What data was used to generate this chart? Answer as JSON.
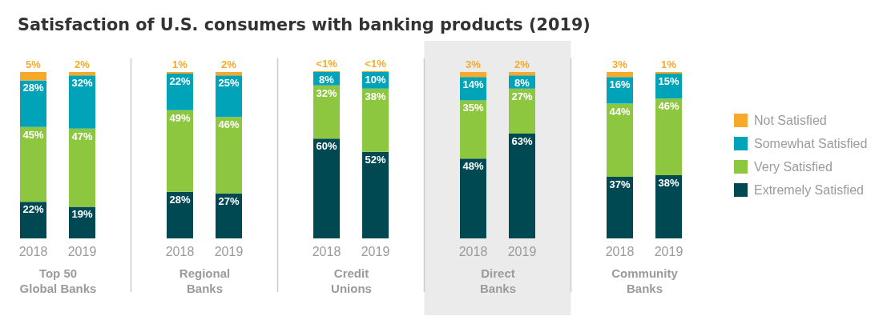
{
  "chart_data": [
    {
      "type": "bar",
      "title": "Satisfaction of U.S. consumers with banking products (2019)",
      "xlabel": "Top 50\nGlobal Banks",
      "categories": [
        "2018",
        "2019"
      ],
      "stacked": true,
      "tick_labels": "x",
      "legend": "right",
      "series": [
        {
          "name": "Extremely Satisfied",
          "color": "#004852",
          "values": [
            22,
            19
          ],
          "value_labels": [
            "22%",
            "19%"
          ]
        },
        {
          "name": "Very Satisfied",
          "color": "#8dc63f",
          "values": [
            45,
            47
          ],
          "value_labels": [
            "45%",
            "47%"
          ]
        },
        {
          "name": "Somewhat Satisfied",
          "color": "#00a3b8",
          "values": [
            28,
            32
          ],
          "value_labels": [
            "28%",
            "32%"
          ]
        },
        {
          "name": "Not Satisfied",
          "color": "#f5ab29",
          "values": [
            5,
            2
          ],
          "value_labels": [
            "5%",
            "2%"
          ]
        }
      ]
    },
    {
      "type": "bar",
      "xlabel": "Regional\nBanks",
      "categories": [
        "2018",
        "2019"
      ],
      "stacked": true,
      "tick_labels": "x",
      "series": [
        {
          "color": "#004852",
          "values": [
            28,
            27
          ],
          "value_labels": [
            "28%",
            "27%"
          ]
        },
        {
          "color": "#8dc63f",
          "values": [
            49,
            46
          ],
          "value_labels": [
            "49%",
            "46%"
          ]
        },
        {
          "color": "#00a3b8",
          "values": [
            22,
            25
          ],
          "value_labels": [
            "22%",
            "25%"
          ]
        },
        {
          "color": "#f5ab29",
          "values": [
            1,
            2
          ],
          "value_labels": [
            "1%",
            "2%"
          ]
        }
      ]
    },
    {
      "type": "bar",
      "xlabel": "Credit\nUnions",
      "categories": [
        "2018",
        "2019"
      ],
      "stacked": true,
      "tick_labels": "x",
      "series": [
        {
          "color": "#004852",
          "values": [
            60,
            52
          ],
          "value_labels": [
            "60%",
            "52%"
          ]
        },
        {
          "color": "#8dc63f",
          "values": [
            32,
            38
          ],
          "value_labels": [
            "32%",
            "38%"
          ]
        },
        {
          "color": "#00a3b8",
          "values": [
            8,
            10
          ],
          "value_labels": [
            "8%",
            "10%"
          ]
        },
        {
          "color": "#f5ab29",
          "values": [
            0.5,
            0.5
          ],
          "value_labels": [
            "<1%",
            "<1%"
          ]
        }
      ]
    },
    {
      "type": "bar",
      "xlabel": "Direct\nBanks",
      "categories": [
        "2018",
        "2019"
      ],
      "stacked": true,
      "tick_labels": "x",
      "bands": [
        {
          "axis": "x",
          "from": "2018",
          "to": "2019",
          "color": "#ebebeb"
        }
      ],
      "series": [
        {
          "color": "#004852",
          "values": [
            48,
            63
          ],
          "value_labels": [
            "48%",
            "63%"
          ]
        },
        {
          "color": "#8dc63f",
          "values": [
            35,
            27
          ],
          "value_labels": [
            "35%",
            "27%"
          ]
        },
        {
          "color": "#00a3b8",
          "values": [
            14,
            8
          ],
          "value_labels": [
            "14%",
            "8%"
          ]
        },
        {
          "color": "#f5ab29",
          "values": [
            3,
            2
          ],
          "value_labels": [
            "3%",
            "2%"
          ]
        }
      ]
    },
    {
      "type": "bar",
      "xlabel": "Community\nBanks",
      "categories": [
        "2018",
        "2019"
      ],
      "stacked": true,
      "tick_labels": "x",
      "series": [
        {
          "color": "#004852",
          "values": [
            37,
            38
          ],
          "value_labels": [
            "37%",
            "38%"
          ]
        },
        {
          "color": "#8dc63f",
          "values": [
            44,
            46
          ],
          "value_labels": [
            "44%",
            "46%"
          ]
        },
        {
          "color": "#00a3b8",
          "values": [
            16,
            15
          ],
          "value_labels": [
            "16%",
            "15%"
          ]
        },
        {
          "color": "#f5ab29",
          "values": [
            3,
            1
          ],
          "value_labels": [
            "3%",
            "1%"
          ]
        }
      ]
    }
  ]
}
